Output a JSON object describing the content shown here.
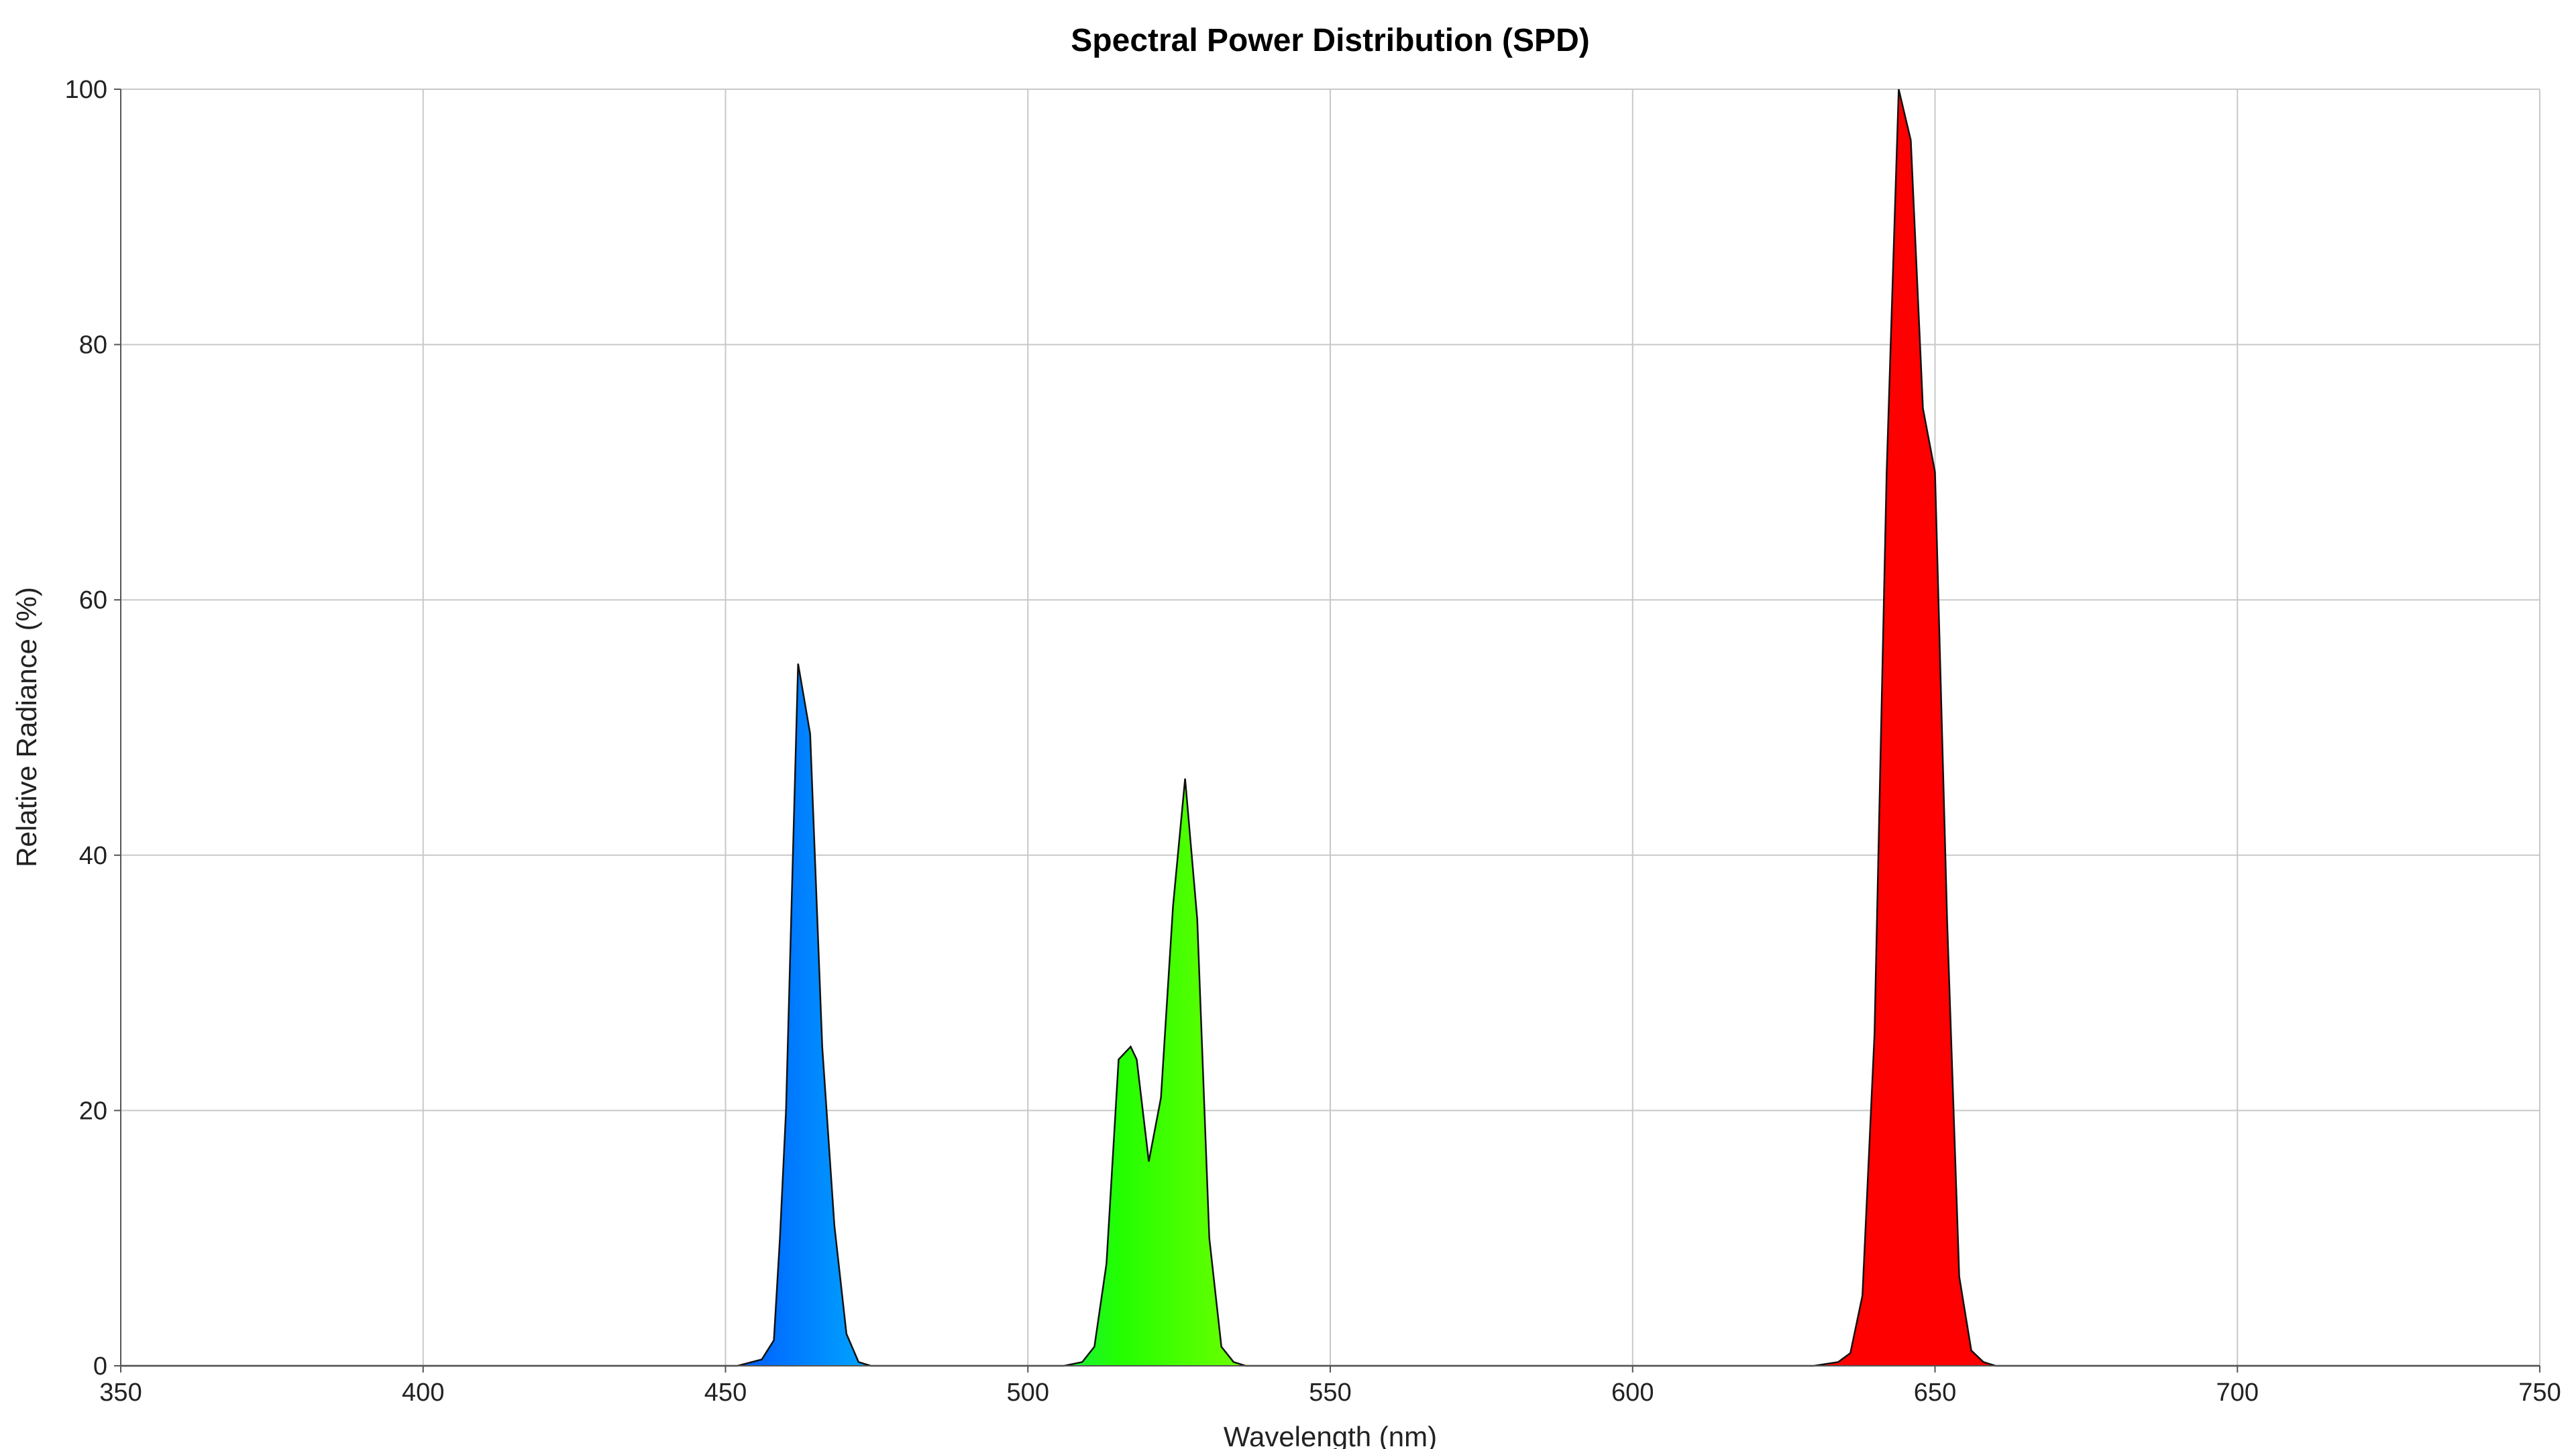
{
  "chart_data": {
    "type": "area",
    "title": "Spectral Power Distribution (SPD)",
    "xlabel": "Wavelength (nm)",
    "ylabel": "Relative Radiance (%)",
    "xlim": [
      350,
      750
    ],
    "ylim": [
      0,
      100
    ],
    "x_ticks": [
      350,
      400,
      450,
      500,
      550,
      600,
      650,
      700,
      750
    ],
    "y_ticks": [
      0,
      20,
      40,
      60,
      80,
      100
    ],
    "grid": true,
    "fill": "spectral-color-gradient",
    "series": [
      {
        "x": [
          350,
          440,
          452,
          456,
          458,
          459,
          460,
          462,
          464,
          466,
          468,
          470,
          472,
          474,
          476,
          480,
          490,
          500,
          506,
          509,
          511,
          513,
          515,
          517,
          518,
          520,
          522,
          524,
          526,
          528,
          530,
          532,
          534,
          536,
          538,
          540,
          550,
          600,
          630,
          634,
          636,
          638,
          640,
          642,
          644,
          645,
          646,
          648,
          650,
          652,
          654,
          656,
          658,
          660,
          662,
          700,
          750
        ],
        "y": [
          0,
          0,
          0,
          0.5,
          2,
          10,
          20,
          55,
          49.5,
          25,
          11,
          2.5,
          0.3,
          0,
          0,
          0,
          0,
          0,
          0,
          0.3,
          1.5,
          8,
          24,
          25,
          24,
          16,
          21,
          36,
          46,
          35,
          10,
          1.5,
          0.3,
          0,
          0,
          0,
          0,
          0,
          0,
          0.3,
          1,
          5.5,
          26,
          70,
          100,
          98,
          96,
          75,
          70,
          35,
          7,
          1.2,
          0.3,
          0,
          0,
          0,
          0
        ]
      }
    ],
    "colors": {
      "violet": "#8b00ff",
      "blue": "#0055ff",
      "cyan": "#00bbff",
      "green": "#22ff00",
      "yellow": "#ffff00",
      "orange": "#ff8800",
      "red": "#ff0000",
      "outline": "#111111",
      "grid": "#c8c8c8"
    }
  }
}
